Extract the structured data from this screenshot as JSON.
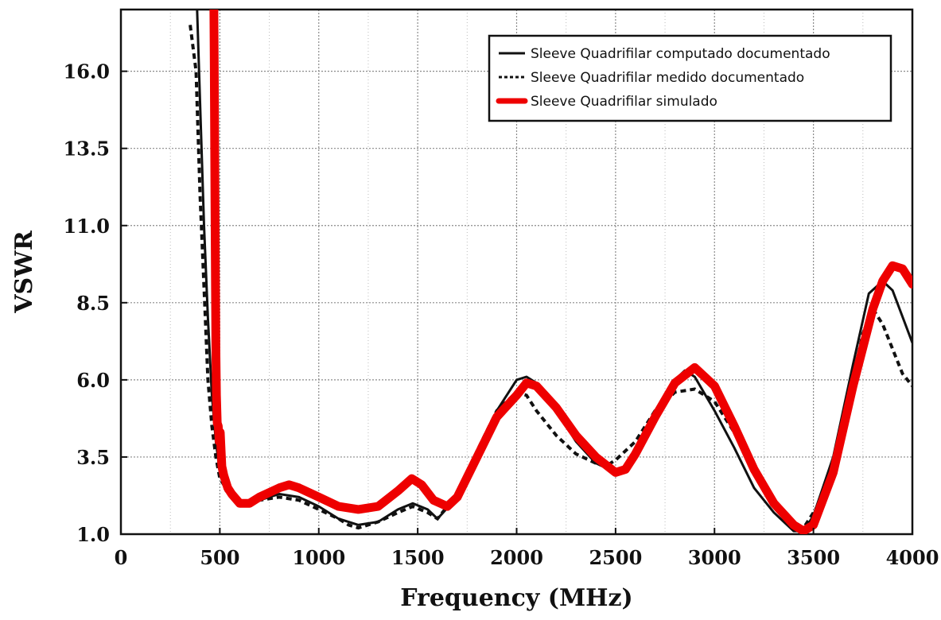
{
  "chart_data": {
    "type": "line",
    "title": "",
    "xlabel": "Frequency (MHz)",
    "ylabel": "VSWR",
    "xlim": [
      0,
      4000
    ],
    "ylim": [
      1.0,
      18.0
    ],
    "x_ticks": [
      0,
      500,
      1000,
      1500,
      2000,
      2500,
      3000,
      3500,
      4000
    ],
    "y_ticks": [
      1.0,
      3.5,
      6.0,
      8.5,
      11.0,
      13.5,
      16.0
    ],
    "x_tick_labels": [
      "0",
      "500",
      "1000",
      "1500",
      "2000",
      "2500",
      "3000",
      "3500",
      "4000"
    ],
    "y_tick_labels": [
      "1.0",
      "3.5",
      "6.0",
      "8.5",
      "11.0",
      "13.5",
      "16.0"
    ],
    "grid": true,
    "legend_position": "top-right",
    "series": [
      {
        "name": "Sleeve Quadrifilar computado  documentado",
        "style": "solid",
        "color": "#111111",
        "points": [
          [
            385,
            18.0
          ],
          [
            400,
            15.0
          ],
          [
            420,
            11.0
          ],
          [
            440,
            8.0
          ],
          [
            460,
            5.5
          ],
          [
            480,
            4.0
          ],
          [
            500,
            3.0
          ],
          [
            530,
            2.4
          ],
          [
            560,
            2.2
          ],
          [
            600,
            2.0
          ],
          [
            650,
            2.0
          ],
          [
            700,
            2.1
          ],
          [
            800,
            2.3
          ],
          [
            900,
            2.2
          ],
          [
            1000,
            1.9
          ],
          [
            1100,
            1.5
          ],
          [
            1200,
            1.3
          ],
          [
            1300,
            1.4
          ],
          [
            1400,
            1.8
          ],
          [
            1475,
            2.0
          ],
          [
            1550,
            1.8
          ],
          [
            1600,
            1.5
          ],
          [
            1700,
            2.2
          ],
          [
            1800,
            3.5
          ],
          [
            1900,
            5.0
          ],
          [
            2000,
            6.0
          ],
          [
            2050,
            6.1
          ],
          [
            2100,
            5.9
          ],
          [
            2200,
            5.0
          ],
          [
            2300,
            4.0
          ],
          [
            2400,
            3.3
          ],
          [
            2500,
            3.0
          ],
          [
            2550,
            3.2
          ],
          [
            2600,
            3.8
          ],
          [
            2700,
            5.0
          ],
          [
            2800,
            6.0
          ],
          [
            2850,
            6.3
          ],
          [
            2900,
            6.1
          ],
          [
            3000,
            5.0
          ],
          [
            3100,
            3.8
          ],
          [
            3200,
            2.5
          ],
          [
            3300,
            1.7
          ],
          [
            3400,
            1.1
          ],
          [
            3450,
            1.1
          ],
          [
            3500,
            1.6
          ],
          [
            3600,
            3.5
          ],
          [
            3700,
            6.5
          ],
          [
            3780,
            8.8
          ],
          [
            3850,
            9.2
          ],
          [
            3900,
            8.9
          ],
          [
            4000,
            7.2
          ]
        ]
      },
      {
        "name": "Sleeve Quadrifilar medido documentado",
        "style": "dashed",
        "color": "#111111",
        "points": [
          [
            350,
            17.5
          ],
          [
            380,
            16.0
          ],
          [
            400,
            12.0
          ],
          [
            420,
            9.0
          ],
          [
            440,
            6.0
          ],
          [
            460,
            4.5
          ],
          [
            480,
            3.5
          ],
          [
            500,
            2.8
          ],
          [
            550,
            2.3
          ],
          [
            600,
            2.0
          ],
          [
            650,
            2.0
          ],
          [
            700,
            2.1
          ],
          [
            800,
            2.2
          ],
          [
            900,
            2.1
          ],
          [
            1000,
            1.8
          ],
          [
            1100,
            1.5
          ],
          [
            1150,
            1.3
          ],
          [
            1200,
            1.2
          ],
          [
            1300,
            1.4
          ],
          [
            1400,
            1.7
          ],
          [
            1475,
            1.9
          ],
          [
            1550,
            1.7
          ],
          [
            1600,
            1.5
          ],
          [
            1700,
            2.3
          ],
          [
            1800,
            3.7
          ],
          [
            1900,
            5.0
          ],
          [
            2000,
            5.6
          ],
          [
            2050,
            5.5
          ],
          [
            2100,
            5.0
          ],
          [
            2200,
            4.2
          ],
          [
            2300,
            3.6
          ],
          [
            2400,
            3.3
          ],
          [
            2450,
            3.2
          ],
          [
            2500,
            3.4
          ],
          [
            2600,
            4.0
          ],
          [
            2700,
            5.0
          ],
          [
            2800,
            5.6
          ],
          [
            2900,
            5.7
          ],
          [
            3000,
            5.3
          ],
          [
            3100,
            4.3
          ],
          [
            3200,
            3.0
          ],
          [
            3300,
            2.0
          ],
          [
            3400,
            1.2
          ],
          [
            3450,
            1.2
          ],
          [
            3550,
            2.2
          ],
          [
            3650,
            4.5
          ],
          [
            3750,
            7.5
          ],
          [
            3800,
            8.3
          ],
          [
            3850,
            7.8
          ],
          [
            3950,
            6.2
          ],
          [
            4000,
            5.8
          ]
        ]
      },
      {
        "name": "Sleeve Quadrifilar simulado",
        "style": "solid-thick",
        "color": "#ee0000",
        "points": [
          [
            470,
            18.0
          ],
          [
            472,
            16.0
          ],
          [
            475,
            12.0
          ],
          [
            478,
            9.0
          ],
          [
            480,
            7.0
          ],
          [
            483,
            5.5
          ],
          [
            487,
            4.6
          ],
          [
            492,
            4.5
          ],
          [
            497,
            4.0
          ],
          [
            502,
            4.3
          ],
          [
            510,
            3.2
          ],
          [
            520,
            2.9
          ],
          [
            540,
            2.5
          ],
          [
            560,
            2.3
          ],
          [
            600,
            2.0
          ],
          [
            650,
            2.0
          ],
          [
            700,
            2.2
          ],
          [
            800,
            2.5
          ],
          [
            850,
            2.6
          ],
          [
            900,
            2.5
          ],
          [
            1000,
            2.2
          ],
          [
            1100,
            1.9
          ],
          [
            1200,
            1.8
          ],
          [
            1300,
            1.9
          ],
          [
            1400,
            2.4
          ],
          [
            1470,
            2.8
          ],
          [
            1520,
            2.6
          ],
          [
            1580,
            2.1
          ],
          [
            1650,
            1.9
          ],
          [
            1700,
            2.2
          ],
          [
            1800,
            3.5
          ],
          [
            1900,
            4.8
          ],
          [
            2000,
            5.5
          ],
          [
            2050,
            5.9
          ],
          [
            2100,
            5.8
          ],
          [
            2200,
            5.1
          ],
          [
            2300,
            4.2
          ],
          [
            2400,
            3.5
          ],
          [
            2500,
            3.0
          ],
          [
            2550,
            3.1
          ],
          [
            2600,
            3.6
          ],
          [
            2700,
            4.8
          ],
          [
            2800,
            5.9
          ],
          [
            2900,
            6.4
          ],
          [
            3000,
            5.8
          ],
          [
            3100,
            4.5
          ],
          [
            3200,
            3.1
          ],
          [
            3300,
            2.0
          ],
          [
            3400,
            1.3
          ],
          [
            3450,
            1.1
          ],
          [
            3500,
            1.3
          ],
          [
            3600,
            3.0
          ],
          [
            3700,
            5.8
          ],
          [
            3800,
            8.3
          ],
          [
            3850,
            9.2
          ],
          [
            3900,
            9.7
          ],
          [
            3950,
            9.6
          ],
          [
            4000,
            9.1
          ]
        ]
      }
    ]
  }
}
